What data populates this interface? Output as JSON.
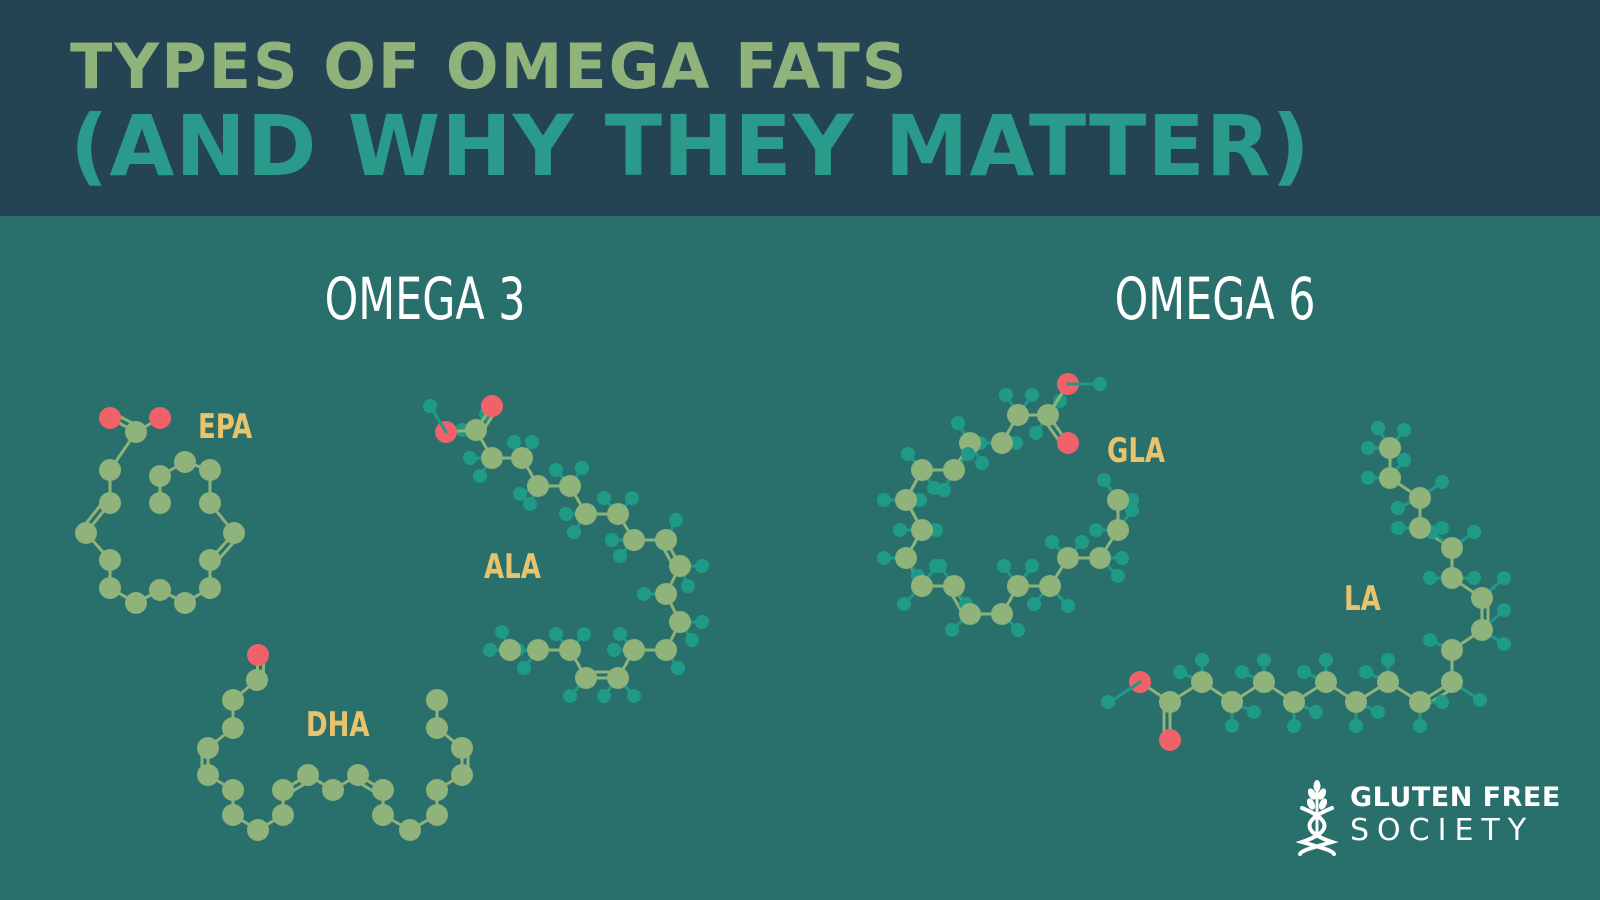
{
  "header": {
    "title_line1": "TYPES OF OMEGA FATS",
    "title_line2": "(AND WHY THEY MATTER)"
  },
  "sections": {
    "omega3": "OMEGA 3",
    "omega6": "OMEGA 6"
  },
  "molecules": {
    "epa": "EPA",
    "ala": "ALA",
    "dha": "DHA",
    "gla": "GLA",
    "la": "LA"
  },
  "logo": {
    "line1": "GLUTEN FREE",
    "line2": "SOCIETY",
    "icon": "wheat-dna-icon"
  },
  "colors": {
    "header_bg": "#244454",
    "body_bg": "#29706d",
    "title1": "#8fb37a",
    "title2": "#2a9a8b",
    "carbon_atom": "#8fb37a",
    "hydrogen_atom": "#1f9a86",
    "oxygen_atom": "#f0626a",
    "label": "#e8c36b"
  }
}
